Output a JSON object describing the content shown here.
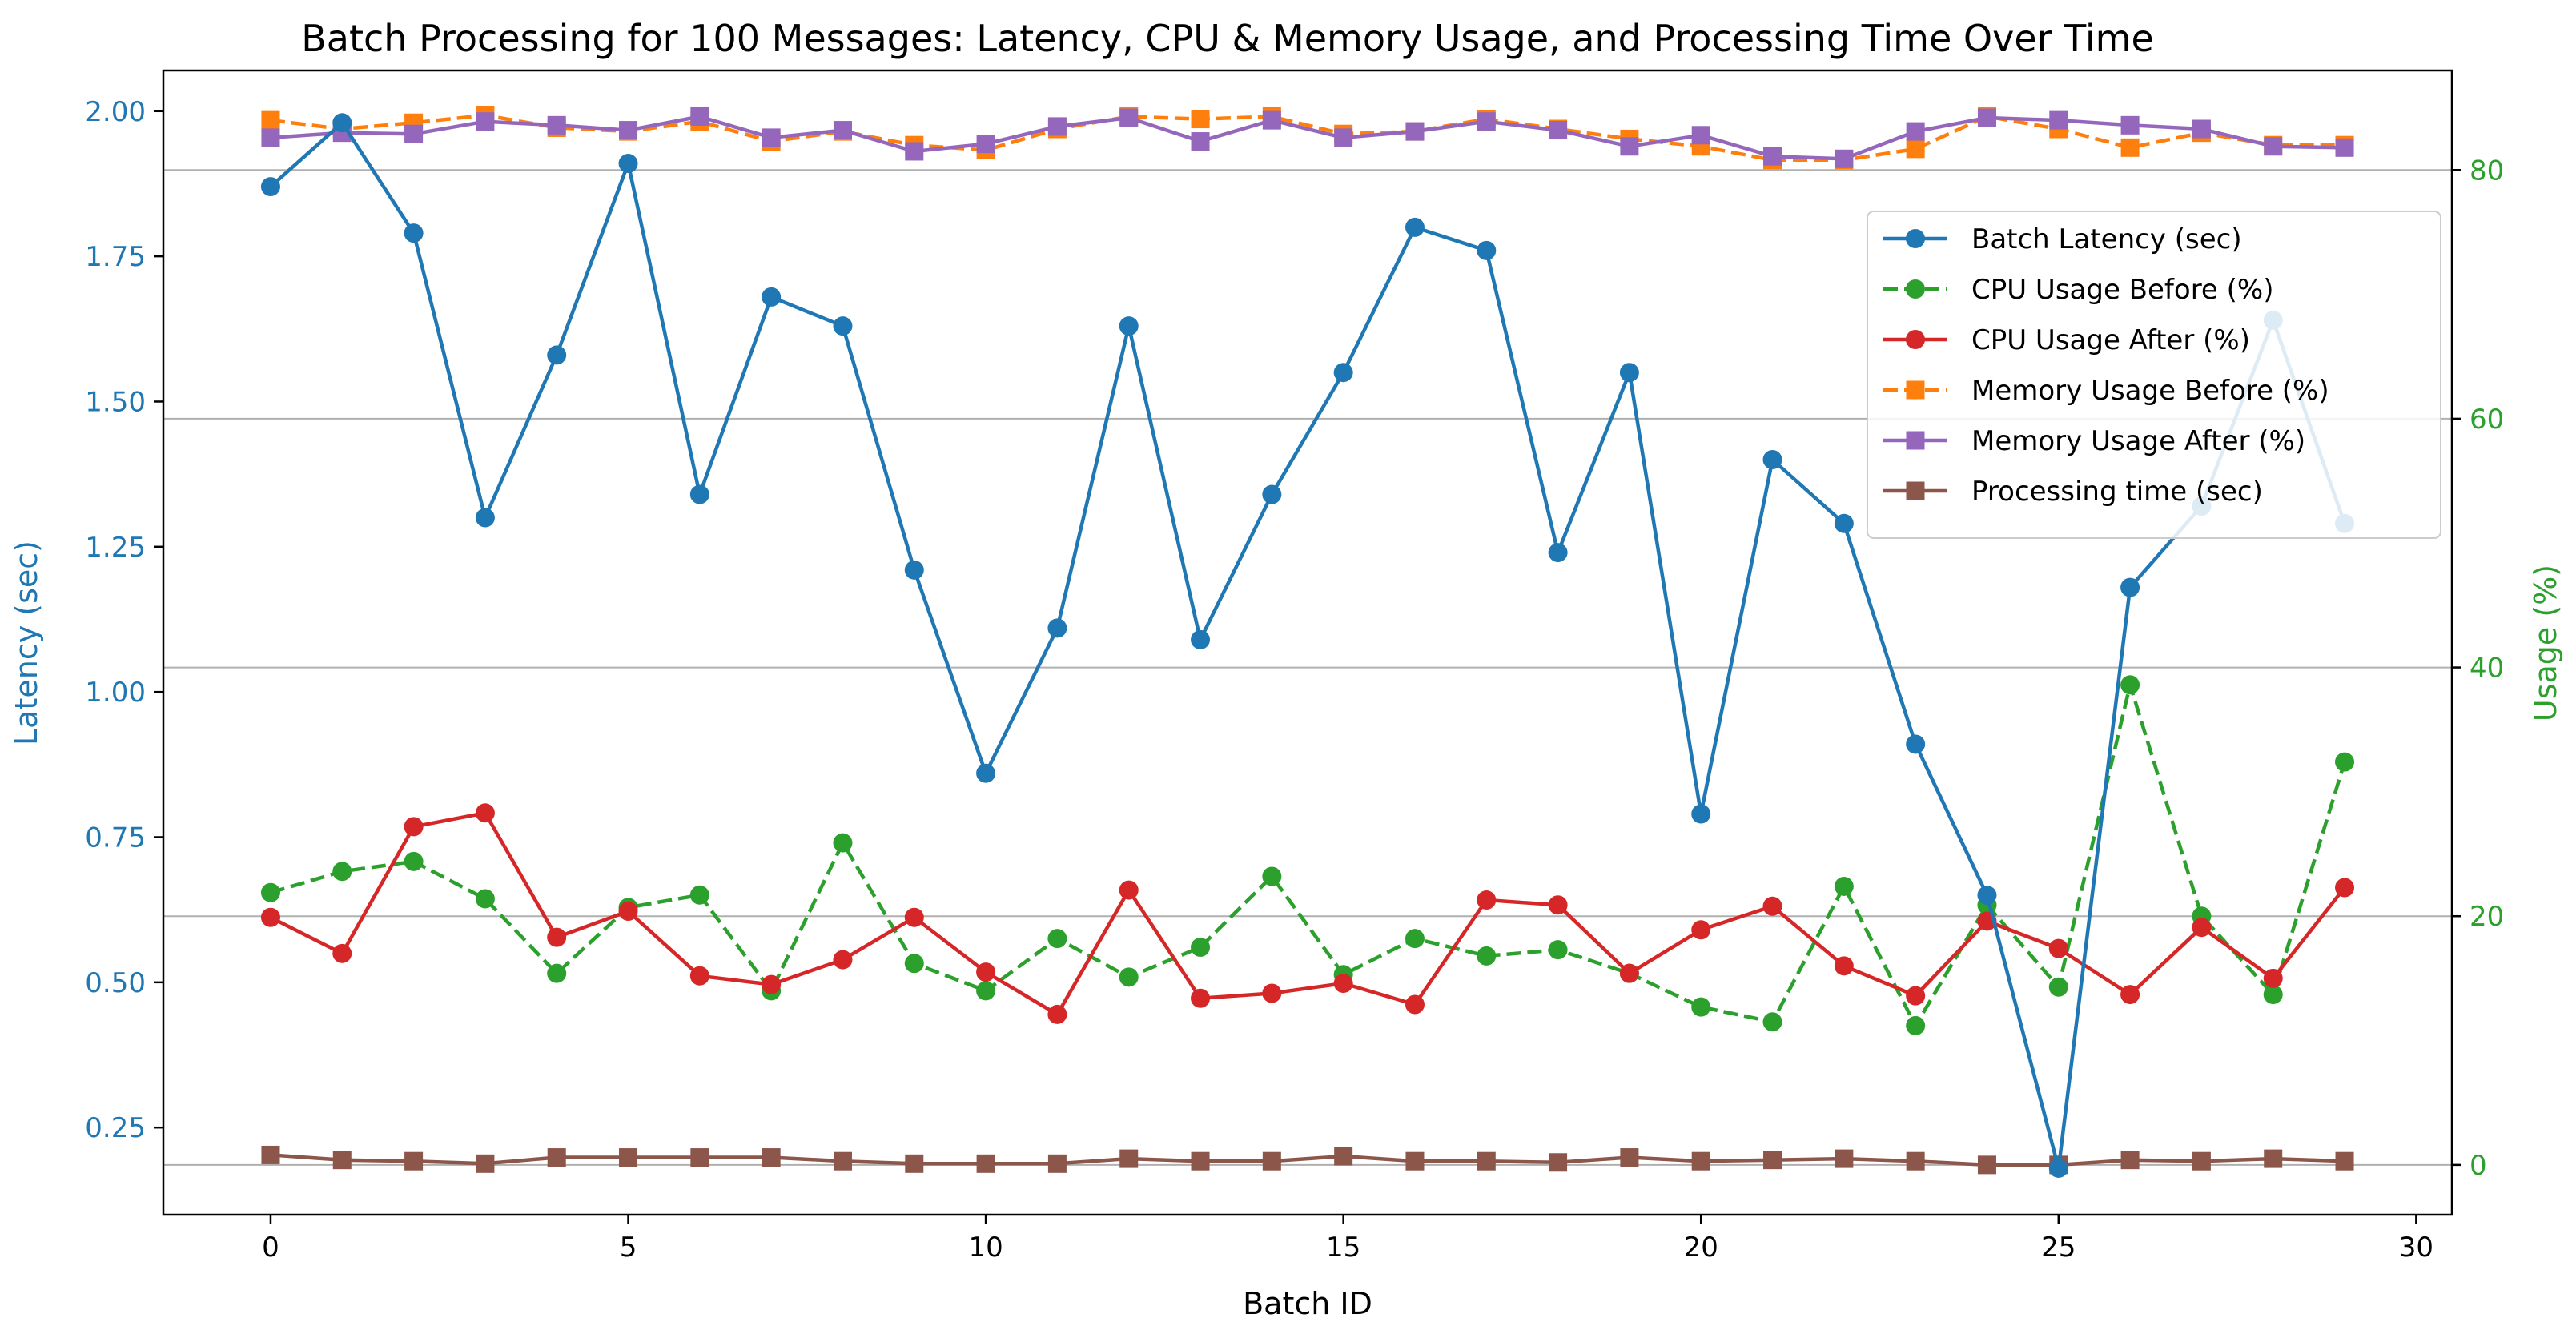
{
  "chart_data": {
    "type": "line",
    "title": "Batch Processing for 100 Messages: Latency, CPU & Memory Usage, and Processing Time Over Time",
    "xlabel": "Batch ID",
    "ylabel_left": "Latency (sec)",
    "ylabel_right": "Usage (%)",
    "xlim": [
      -1.5,
      30.5
    ],
    "ylim_left": [
      0.1,
      2.07
    ],
    "ylim_right": [
      -4,
      88
    ],
    "x_ticks": [
      0,
      5,
      10,
      15,
      20,
      25,
      30
    ],
    "x_tick_labels": [
      "0",
      "5",
      "10",
      "15",
      "20",
      "25",
      "30"
    ],
    "y_left_ticks": [
      0.25,
      0.5,
      0.75,
      1.0,
      1.25,
      1.5,
      1.75,
      2.0
    ],
    "y_left_tick_labels": [
      "0.25",
      "0.50",
      "0.75",
      "1.00",
      "1.25",
      "1.50",
      "1.75",
      "2.00"
    ],
    "y_right_ticks": [
      0,
      20,
      40,
      60,
      80
    ],
    "y_right_tick_labels": [
      "0",
      "20",
      "40",
      "60",
      "80"
    ],
    "grid": "horizontal gridlines at right-axis ticks",
    "legend_position": "upper-right",
    "x": [
      0,
      1,
      2,
      3,
      4,
      5,
      6,
      7,
      8,
      9,
      10,
      11,
      12,
      13,
      14,
      15,
      16,
      17,
      18,
      19,
      20,
      21,
      22,
      23,
      24,
      25,
      26,
      27,
      28,
      29
    ],
    "series": [
      {
        "name": "Batch Latency (sec)",
        "axis": "left",
        "color": "#1f77b4",
        "linestyle": "solid",
        "marker": "circle",
        "values": [
          1.87,
          1.98,
          1.79,
          1.3,
          1.58,
          1.91,
          1.34,
          1.68,
          1.63,
          1.21,
          0.86,
          1.11,
          1.63,
          1.09,
          1.34,
          1.55,
          1.8,
          1.76,
          1.24,
          1.55,
          0.79,
          1.4,
          1.29,
          0.91,
          0.65,
          0.18,
          1.18,
          1.32,
          1.64,
          1.29
        ]
      },
      {
        "name": "CPU Usage Before (%)",
        "axis": "right",
        "color": "#2ca02c",
        "linestyle": "dashed",
        "marker": "circle",
        "values": [
          21.9,
          23.6,
          24.4,
          21.4,
          15.4,
          20.7,
          21.7,
          14.0,
          25.9,
          16.2,
          14.0,
          18.2,
          15.1,
          17.5,
          23.2,
          15.3,
          18.2,
          16.8,
          17.3,
          15.4,
          12.7,
          11.5,
          22.4,
          11.2,
          20.9,
          14.3,
          38.6,
          20.0,
          13.7,
          32.4
        ]
      },
      {
        "name": "CPU Usage After (%)",
        "axis": "right",
        "color": "#d62728",
        "linestyle": "solid",
        "marker": "circle",
        "values": [
          19.9,
          17.0,
          27.2,
          28.3,
          18.3,
          20.4,
          15.2,
          14.5,
          16.5,
          19.9,
          15.5,
          12.1,
          22.1,
          13.4,
          13.8,
          14.6,
          12.9,
          21.3,
          20.9,
          15.4,
          18.9,
          20.8,
          16.0,
          13.6,
          19.6,
          17.4,
          13.7,
          19.1,
          15.0,
          22.3
        ]
      },
      {
        "name": "Memory Usage Before (%)",
        "axis": "right",
        "color": "#ff7f0e",
        "linestyle": "dashed",
        "marker": "square",
        "values": [
          84.0,
          83.3,
          83.8,
          84.4,
          83.4,
          83.1,
          83.9,
          82.3,
          83.1,
          82.0,
          81.6,
          83.3,
          84.3,
          84.1,
          84.3,
          82.9,
          83.1,
          84.1,
          83.3,
          82.5,
          81.9,
          80.8,
          80.8,
          81.7,
          84.3,
          83.3,
          81.8,
          83.0,
          82.0,
          82.0
        ]
      },
      {
        "name": "Memory Usage After (%)",
        "axis": "right",
        "color": "#9467bd",
        "linestyle": "solid",
        "marker": "square",
        "values": [
          82.6,
          83.0,
          82.9,
          83.9,
          83.6,
          83.2,
          84.3,
          82.6,
          83.2,
          81.5,
          82.1,
          83.5,
          84.2,
          82.3,
          84.0,
          82.6,
          83.1,
          83.9,
          83.2,
          81.9,
          82.8,
          81.1,
          80.9,
          83.1,
          84.2,
          84.0,
          83.6,
          83.3,
          81.9,
          81.8
        ]
      },
      {
        "name": "Processing time (sec)",
        "axis": "right",
        "color": "#8c564b",
        "linestyle": "solid",
        "marker": "square",
        "values": [
          0.8,
          0.4,
          0.3,
          0.1,
          0.6,
          0.6,
          0.6,
          0.6,
          0.3,
          0.1,
          0.1,
          0.1,
          0.5,
          0.3,
          0.3,
          0.7,
          0.3,
          0.3,
          0.2,
          0.6,
          0.3,
          0.4,
          0.5,
          0.3,
          0.0,
          0.0,
          0.4,
          0.3,
          0.5,
          0.3
        ]
      }
    ]
  }
}
